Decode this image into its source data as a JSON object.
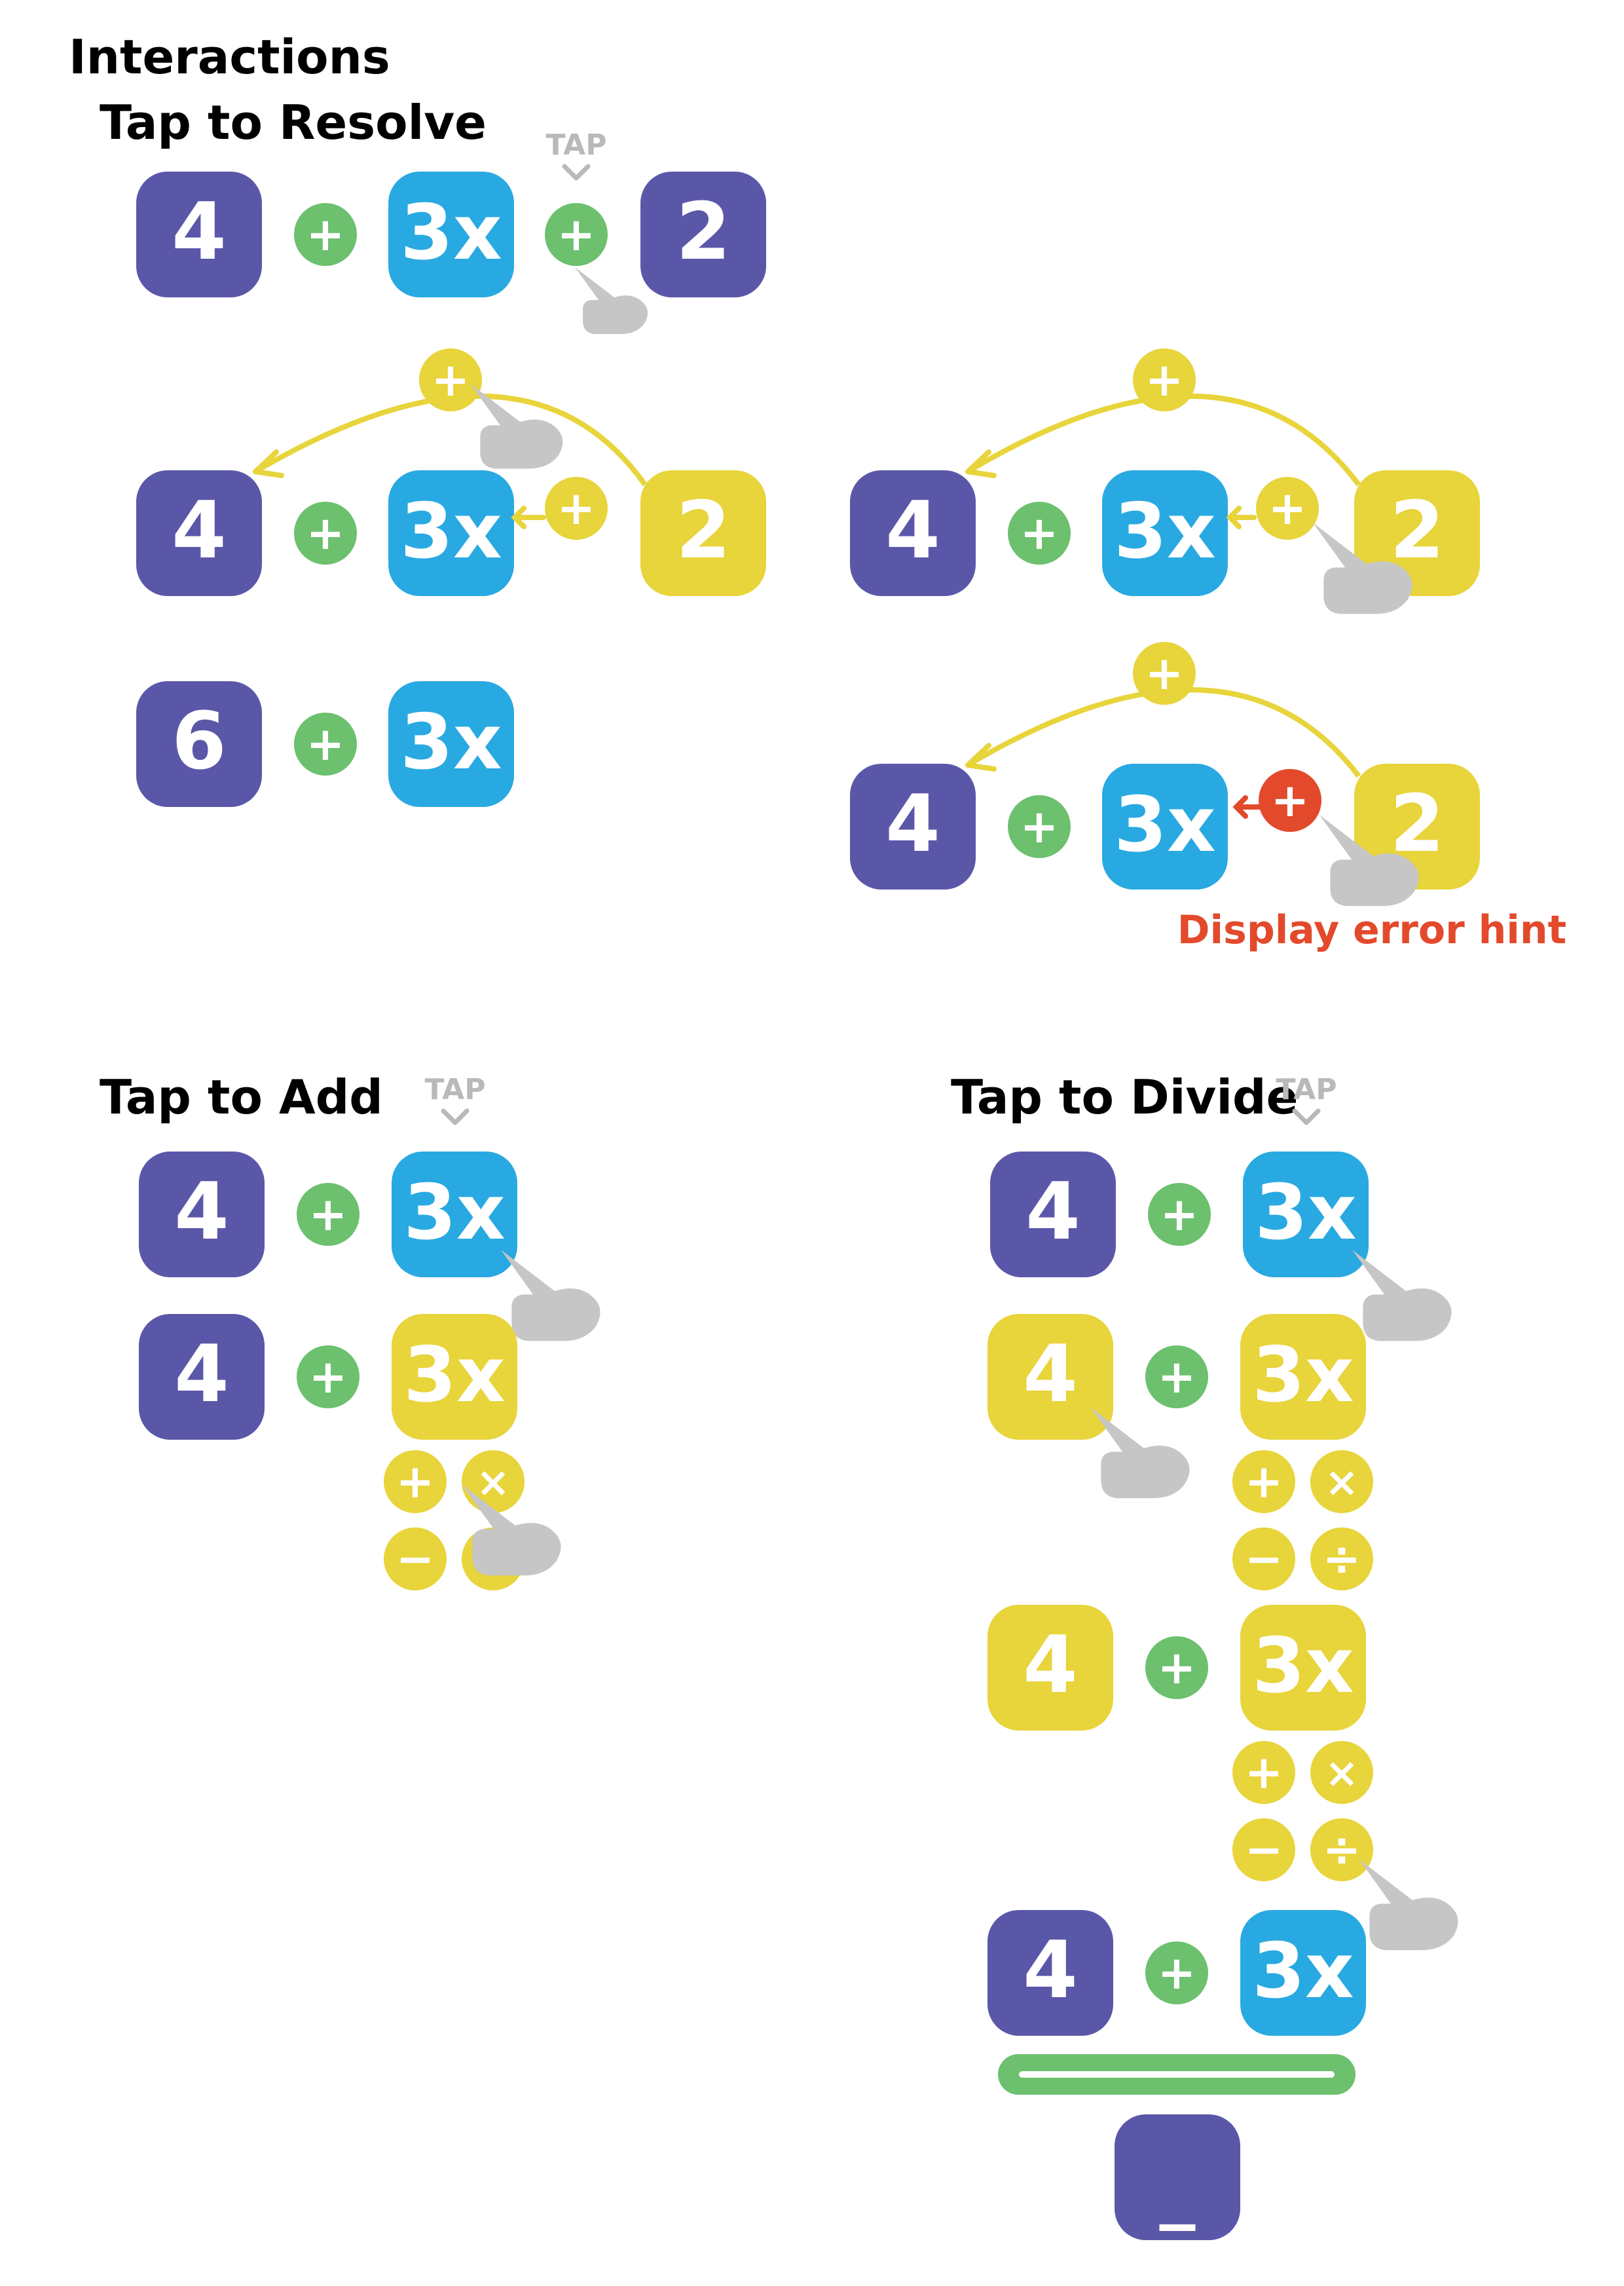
{
  "title": "Interactions",
  "colors": {
    "purple": "#5b57a8",
    "blue": "#29a9e1",
    "yellow": "#e8d43b",
    "green": "#6cc06e",
    "red": "#e24a2b",
    "gray": "#b9b9b9",
    "hand": "#c6c6c6"
  },
  "symbols": {
    "plus": "+",
    "minus": "−",
    "times": "×",
    "divide": "÷"
  },
  "sections": {
    "resolve": {
      "title": "Tap to Resolve",
      "tap_label": "TAP",
      "row1": {
        "a": "4",
        "b": "3x",
        "c": "2"
      },
      "row2": {
        "a": "4",
        "b": "3x",
        "c": "2"
      },
      "row3": {
        "a": "6",
        "b": "3x"
      },
      "row2r": {
        "a": "4",
        "b": "3x",
        "c": "2"
      },
      "row3r": {
        "a": "4",
        "b": "3x",
        "c": "2"
      },
      "error_hint": "Display error hint"
    },
    "add": {
      "title": "Tap to Add",
      "tap_label": "TAP",
      "row1": {
        "a": "4",
        "b": "3x"
      },
      "row2": {
        "a": "4",
        "b": "3x"
      }
    },
    "divide": {
      "title": "Tap to Divide",
      "tap_label": "TAP",
      "row1": {
        "a": "4",
        "b": "3x"
      },
      "row2": {
        "a": "4",
        "b": "3x"
      },
      "row3": {
        "a": "4",
        "b": "3x"
      },
      "row4": {
        "a": "4",
        "b": "3x"
      },
      "result_tile": "_"
    }
  }
}
